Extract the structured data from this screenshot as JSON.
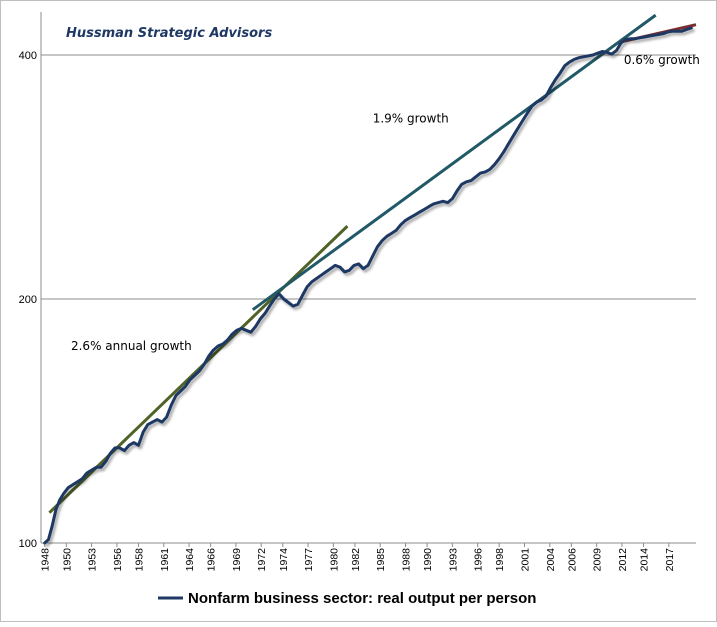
{
  "chart_data": {
    "type": "line",
    "title": "",
    "watermark": "Hussman Strategic Advisors",
    "y_scale": "log",
    "ylim": [
      100,
      440
    ],
    "xlim": [
      1947.6,
      2017.5
    ],
    "y_ticks": [
      {
        "value": 100,
        "label": "100"
      },
      {
        "value": 200,
        "label": "200"
      },
      {
        "value": 400,
        "label": "400"
      }
    ],
    "x_ticks": [
      "1948",
      "1950",
      "1953",
      "1956",
      "1958",
      "1961",
      "1964",
      "1966",
      "1969",
      "1972",
      "1974",
      "1977",
      "1980",
      "1982",
      "1985",
      "1988",
      "1990",
      "1993",
      "1996",
      "1998",
      "2001",
      "2004",
      "2006",
      "2009",
      "2012",
      "2014",
      "2017"
    ],
    "x_tick_years": [
      1948,
      1950.3,
      1953,
      1955.7,
      1958,
      1960.7,
      1963.4,
      1965.7,
      1968.4,
      1971.1,
      1973.4,
      1976.1,
      1978.8,
      1981.1,
      1983.8,
      1986.5,
      1988.8,
      1991.5,
      1994.2,
      1996.5,
      1999.2,
      2001.9,
      2004.2,
      2006.9,
      2009.6,
      2011.9,
      2014.6
    ],
    "series": [
      {
        "name": "Nonfarm business sector: real output per person",
        "color": "#1f3864",
        "points": [
          [
            1948.0,
            100
          ],
          [
            1948.4,
            101
          ],
          [
            1948.8,
            105
          ],
          [
            1949.2,
            110
          ],
          [
            1949.6,
            113
          ],
          [
            1950.0,
            115
          ],
          [
            1950.5,
            117
          ],
          [
            1951.0,
            118
          ],
          [
            1951.5,
            119
          ],
          [
            1952.0,
            120
          ],
          [
            1952.5,
            122
          ],
          [
            1953.0,
            123
          ],
          [
            1953.5,
            124
          ],
          [
            1954.0,
            124
          ],
          [
            1954.5,
            126
          ],
          [
            1955.0,
            129
          ],
          [
            1955.5,
            131
          ],
          [
            1956.0,
            131
          ],
          [
            1956.5,
            130
          ],
          [
            1957.0,
            132
          ],
          [
            1957.5,
            133
          ],
          [
            1958.0,
            132
          ],
          [
            1958.5,
            137
          ],
          [
            1959.0,
            140
          ],
          [
            1959.5,
            141
          ],
          [
            1960.0,
            142
          ],
          [
            1960.5,
            141
          ],
          [
            1961.0,
            143
          ],
          [
            1961.5,
            148
          ],
          [
            1962.0,
            152
          ],
          [
            1962.5,
            154
          ],
          [
            1963.0,
            156
          ],
          [
            1963.5,
            159
          ],
          [
            1964.0,
            161
          ],
          [
            1964.5,
            163
          ],
          [
            1965.0,
            166
          ],
          [
            1965.5,
            170
          ],
          [
            1966.0,
            173
          ],
          [
            1966.5,
            175
          ],
          [
            1967.0,
            176
          ],
          [
            1967.5,
            178
          ],
          [
            1968.0,
            181
          ],
          [
            1968.5,
            183
          ],
          [
            1969.0,
            184
          ],
          [
            1969.5,
            183
          ],
          [
            1970.0,
            182
          ],
          [
            1970.5,
            185
          ],
          [
            1971.0,
            189
          ],
          [
            1971.5,
            192
          ],
          [
            1972.0,
            196
          ],
          [
            1972.5,
            200
          ],
          [
            1973.0,
            203
          ],
          [
            1973.5,
            200
          ],
          [
            1974.0,
            198
          ],
          [
            1974.5,
            196
          ],
          [
            1975.0,
            197
          ],
          [
            1975.5,
            202
          ],
          [
            1976.0,
            207
          ],
          [
            1976.5,
            210
          ],
          [
            1977.0,
            212
          ],
          [
            1977.5,
            214
          ],
          [
            1978.0,
            216
          ],
          [
            1978.5,
            218
          ],
          [
            1979.0,
            220
          ],
          [
            1979.5,
            219
          ],
          [
            1980.0,
            216
          ],
          [
            1980.5,
            217
          ],
          [
            1981.0,
            220
          ],
          [
            1981.5,
            221
          ],
          [
            1982.0,
            218
          ],
          [
            1982.5,
            220
          ],
          [
            1983.0,
            226
          ],
          [
            1983.5,
            232
          ],
          [
            1984.0,
            236
          ],
          [
            1984.5,
            239
          ],
          [
            1985.0,
            241
          ],
          [
            1985.5,
            243
          ],
          [
            1986.0,
            247
          ],
          [
            1986.5,
            250
          ],
          [
            1987.0,
            252
          ],
          [
            1987.5,
            254
          ],
          [
            1988.0,
            256
          ],
          [
            1988.5,
            258
          ],
          [
            1989.0,
            260
          ],
          [
            1989.5,
            262
          ],
          [
            1990.0,
            263
          ],
          [
            1990.5,
            264
          ],
          [
            1991.0,
            263
          ],
          [
            1991.5,
            266
          ],
          [
            1992.0,
            272
          ],
          [
            1992.5,
            277
          ],
          [
            1993.0,
            279
          ],
          [
            1993.5,
            280
          ],
          [
            1994.0,
            283
          ],
          [
            1994.5,
            286
          ],
          [
            1995.0,
            287
          ],
          [
            1995.5,
            289
          ],
          [
            1996.0,
            293
          ],
          [
            1996.5,
            298
          ],
          [
            1997.0,
            304
          ],
          [
            1997.5,
            311
          ],
          [
            1998.0,
            318
          ],
          [
            1998.5,
            325
          ],
          [
            1999.0,
            332
          ],
          [
            1999.5,
            339
          ],
          [
            2000.0,
            346
          ],
          [
            2000.5,
            350
          ],
          [
            2001.0,
            352
          ],
          [
            2001.5,
            356
          ],
          [
            2002.0,
            365
          ],
          [
            2002.5,
            373
          ],
          [
            2003.0,
            380
          ],
          [
            2003.5,
            388
          ],
          [
            2004.0,
            392
          ],
          [
            2004.5,
            395
          ],
          [
            2005.0,
            397
          ],
          [
            2005.5,
            398
          ],
          [
            2006.0,
            399
          ],
          [
            2006.5,
            400
          ],
          [
            2007.0,
            402
          ],
          [
            2007.5,
            404
          ],
          [
            2008.0,
            403
          ],
          [
            2008.5,
            401
          ],
          [
            2009.0,
            405
          ],
          [
            2009.5,
            414
          ],
          [
            2010.0,
            418
          ],
          [
            2010.5,
            419
          ],
          [
            2011.0,
            419
          ],
          [
            2011.5,
            420
          ],
          [
            2012.0,
            421
          ],
          [
            2012.5,
            422
          ],
          [
            2013.0,
            423
          ],
          [
            2013.5,
            424
          ],
          [
            2014.0,
            425
          ],
          [
            2014.5,
            427
          ],
          [
            2015.0,
            428
          ],
          [
            2015.5,
            428
          ],
          [
            2016.0,
            428
          ],
          [
            2016.5,
            430
          ],
          [
            2017.0,
            432
          ]
        ]
      }
    ],
    "trend_lines": [
      {
        "name": "2.6% annual growth",
        "color": "#4f6228",
        "x0": 1948.5,
        "y0": 109,
        "x1": 1980.3,
        "y1": 246
      },
      {
        "name": "1.9% growth",
        "color": "#215967",
        "x0": 1970.2,
        "y0": 194,
        "x1": 2013.2,
        "y1": 448
      },
      {
        "name": "0.6% growth",
        "color": "#7b2d2d",
        "x0": 2009.4,
        "y0": 415,
        "x1": 2017.5,
        "y1": 436
      }
    ],
    "annotations": [
      {
        "text": "2.6% annual growth",
        "x": 1950.8,
        "y": 173
      },
      {
        "text": "1.9% growth",
        "x": 1983.0,
        "y": 330
      },
      {
        "text": "0.6% growth",
        "x": 2009.8,
        "y": 390
      }
    ],
    "legend": {
      "position": "bottom",
      "label": "Nonfarm business sector: real output per person"
    },
    "grid": true
  }
}
